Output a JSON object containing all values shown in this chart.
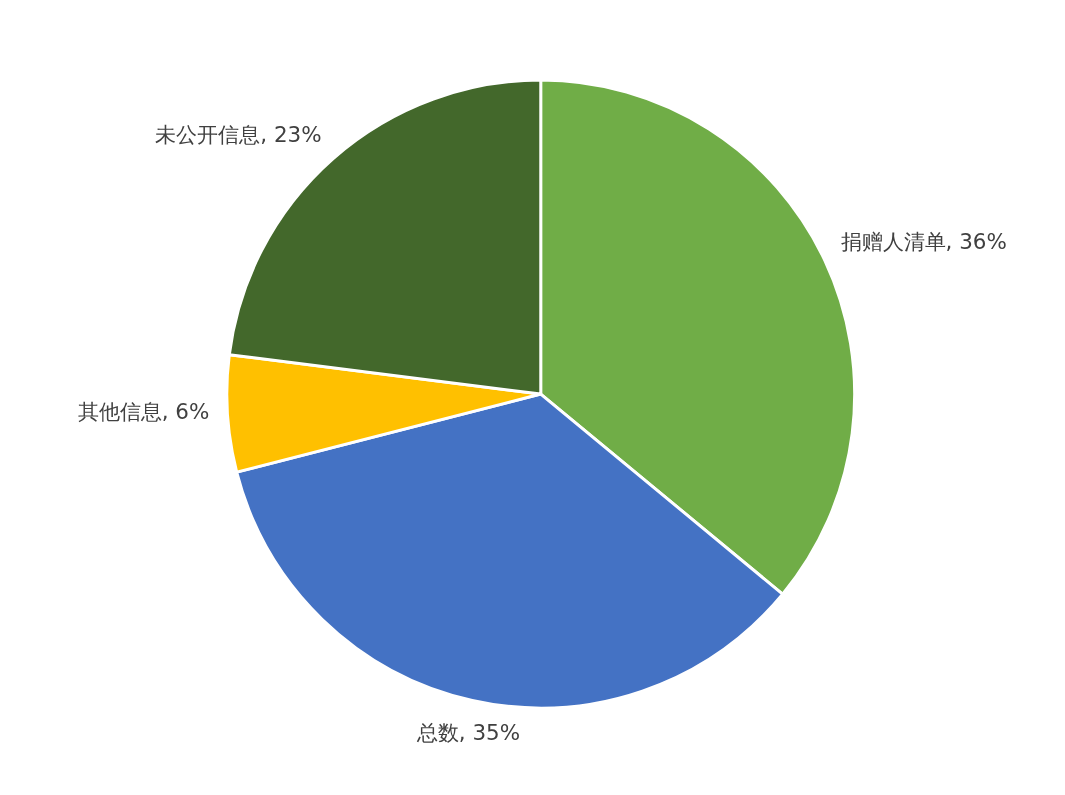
{
  "chart_data": {
    "type": "pie",
    "categories": [
      "捐赠人清单",
      "总数",
      "其他信息",
      "未公开信息"
    ],
    "values": [
      36,
      35,
      6,
      23
    ],
    "value_labels": [
      "36%",
      "35%",
      "6%",
      "23%"
    ],
    "colors": [
      "#70ad47",
      "#4472c4",
      "#ffc000",
      "#43682b"
    ]
  }
}
